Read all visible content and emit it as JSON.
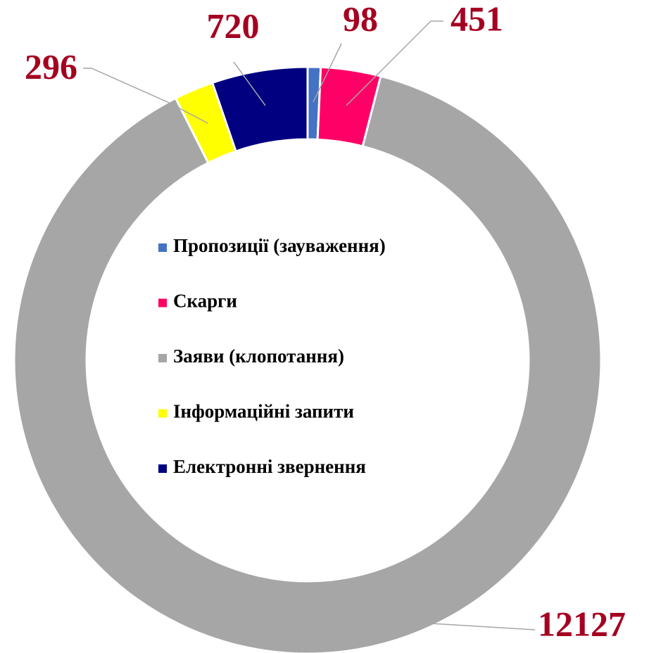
{
  "chart_data": {
    "type": "donut",
    "categories": [
      "Пропозиції (зауваження)",
      "Скарги",
      "Заяви (клопотання)",
      "Інформаційні запити",
      "Електронні звернення"
    ],
    "values": [
      98,
      451,
      12127,
      296,
      720
    ],
    "colors": [
      "#4472c4",
      "#ff0066",
      "#a6a6a6",
      "#ffff00",
      "#000080"
    ],
    "legend": "center"
  }
}
